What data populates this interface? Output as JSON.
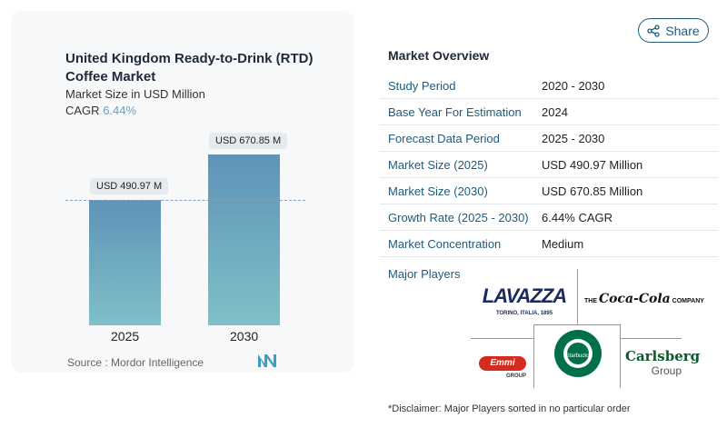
{
  "chart": {
    "title": "United Kingdom Ready-to-Drink (RTD) Coffee Market",
    "subtitle": "Market Size in USD Million",
    "cagr_label": "CAGR",
    "cagr_value": "6.44%",
    "source": "Source :  Mordor Intelligence"
  },
  "chart_data": {
    "type": "bar",
    "title": "United Kingdom Ready-to-Drink (RTD) Coffee Market",
    "ylabel": "Market Size in USD Million",
    "categories": [
      "2025",
      "2030"
    ],
    "values": [
      490.97,
      670.85
    ],
    "data_labels": [
      "USD 490.97 M",
      "USD 670.85 M"
    ],
    "ylim": [
      0,
      700
    ]
  },
  "share_label": "Share",
  "overview": {
    "title": "Market Overview",
    "rows": [
      {
        "k": "Study Period",
        "v": "2020 - 2030"
      },
      {
        "k": "Base Year For Estimation",
        "v": "2024"
      },
      {
        "k": "Forecast Data Period",
        "v": "2025 - 2030"
      },
      {
        "k": "Market Size (2025)",
        "v": "USD 490.97 Million"
      },
      {
        "k": "Market Size (2030)",
        "v": "USD 670.85 Million"
      },
      {
        "k": "Growth Rate (2025 - 2030)",
        "v": "6.44% CAGR"
      },
      {
        "k": "Market Concentration",
        "v": "Medium"
      }
    ],
    "major_players": "Major Players",
    "players": [
      "LAVAZZA",
      "TORINO, ITALIA, 1895",
      "THE",
      "Coca-Cola",
      "COMPANY",
      "Emmi",
      "GROUP",
      "Starbucks",
      "Carlsberg",
      "Group"
    ],
    "disclaimer": "*Disclaimer: Major Players sorted in no particular order"
  }
}
